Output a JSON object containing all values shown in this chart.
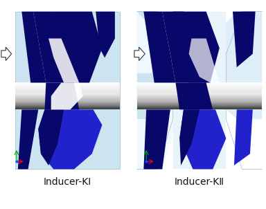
{
  "title_left": "Inducer-KⅠ",
  "title_right": "Inducer-KⅡ",
  "bg_color": "#ffffff",
  "light_blue": "#cce4f0",
  "light_blue2": "#ddeef8",
  "dark_navy": "#08086a",
  "blue": "#1515b8",
  "bright_blue": "#2222cc",
  "white": "#ffffff",
  "gray_hub": "#909090",
  "label_fontsize": 10,
  "fig_width": 3.84,
  "fig_height": 3.02
}
